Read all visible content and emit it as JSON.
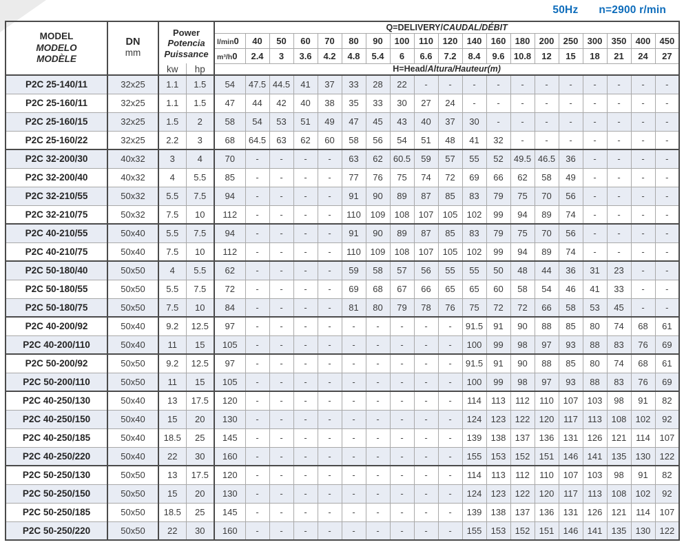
{
  "page": {
    "frequency": "50Hz",
    "speed": "n=2900 r/min",
    "accent_blue": "#0d6cbb",
    "stripe_color": "#e8ecf4"
  },
  "table": {
    "header": {
      "model_lines": [
        "MODEL",
        "MODELO",
        "MODÈLE"
      ],
      "dn_label": "DN",
      "dn_unit": "mm",
      "power_lines": [
        "Power",
        "Potencia",
        "Puissance"
      ],
      "kw_label": "kw",
      "hp_label": "hp",
      "q_title_main": "Q=DELIVERY/",
      "q_title_italic": "CAUDAL/DÉBIT",
      "lmin_label": "l/min",
      "m3h_label": "m³/h",
      "lmin_values": [
        "0",
        "40",
        "50",
        "60",
        "70",
        "80",
        "90",
        "100",
        "110",
        "120",
        "140",
        "160",
        "180",
        "200",
        "250",
        "300",
        "350",
        "400",
        "450"
      ],
      "m3h_values": [
        "0",
        "2.4",
        "3",
        "3.6",
        "4.2",
        "4.8",
        "5.4",
        "6",
        "6.6",
        "7.2",
        "8.4",
        "9.6",
        "10.8",
        "12",
        "15",
        "18",
        "21",
        "24",
        "27"
      ],
      "h_title_main": "H=Head/",
      "h_title_italic": "Altura/Hauteur(m)"
    },
    "rows": [
      {
        "model": "P2C 25-140/11",
        "dn": "32x25",
        "kw": "1.1",
        "hp": "1.5",
        "head": [
          "54",
          "47.5",
          "44.5",
          "41",
          "37",
          "33",
          "28",
          "22",
          "-",
          "-",
          "-",
          "-",
          "-",
          "-",
          "-",
          "-",
          "-",
          "-",
          "-"
        ],
        "groupEnd": false
      },
      {
        "model": "P2C 25-160/11",
        "dn": "32x25",
        "kw": "1.1",
        "hp": "1.5",
        "head": [
          "47",
          "44",
          "42",
          "40",
          "38",
          "35",
          "33",
          "30",
          "27",
          "24",
          "-",
          "-",
          "-",
          "-",
          "-",
          "-",
          "-",
          "-",
          "-"
        ],
        "groupEnd": false
      },
      {
        "model": "P2C 25-160/15",
        "dn": "32x25",
        "kw": "1.5",
        "hp": "2",
        "head": [
          "58",
          "54",
          "53",
          "51",
          "49",
          "47",
          "45",
          "43",
          "40",
          "37",
          "30",
          "-",
          "-",
          "-",
          "-",
          "-",
          "-",
          "-",
          "-"
        ],
        "groupEnd": false
      },
      {
        "model": "P2C 25-160/22",
        "dn": "32x25",
        "kw": "2.2",
        "hp": "3",
        "head": [
          "68",
          "64.5",
          "63",
          "62",
          "60",
          "58",
          "56",
          "54",
          "51",
          "48",
          "41",
          "32",
          "-",
          "-",
          "-",
          "-",
          "-",
          "-",
          "-"
        ],
        "groupEnd": true
      },
      {
        "model": "P2C 32-200/30",
        "dn": "40x32",
        "kw": "3",
        "hp": "4",
        "head": [
          "70",
          "-",
          "-",
          "-",
          "-",
          "63",
          "62",
          "60.5",
          "59",
          "57",
          "55",
          "52",
          "49.5",
          "46.5",
          "36",
          "-",
          "-",
          "-",
          "-"
        ],
        "groupEnd": false
      },
      {
        "model": "P2C 32-200/40",
        "dn": "40x32",
        "kw": "4",
        "hp": "5.5",
        "head": [
          "85",
          "-",
          "-",
          "-",
          "-",
          "77",
          "76",
          "75",
          "74",
          "72",
          "69",
          "66",
          "62",
          "58",
          "49",
          "-",
          "-",
          "-",
          "-"
        ],
        "groupEnd": false
      },
      {
        "model": "P2C 32-210/55",
        "dn": "50x32",
        "kw": "5.5",
        "hp": "7.5",
        "head": [
          "94",
          "-",
          "-",
          "-",
          "-",
          "91",
          "90",
          "89",
          "87",
          "85",
          "83",
          "79",
          "75",
          "70",
          "56",
          "-",
          "-",
          "-",
          "-"
        ],
        "groupEnd": false
      },
      {
        "model": "P2C 32-210/75",
        "dn": "50x32",
        "kw": "7.5",
        "hp": "10",
        "head": [
          "112",
          "-",
          "-",
          "-",
          "-",
          "110",
          "109",
          "108",
          "107",
          "105",
          "102",
          "99",
          "94",
          "89",
          "74",
          "-",
          "-",
          "-",
          "-"
        ],
        "groupEnd": true
      },
      {
        "model": "P2C 40-210/55",
        "dn": "50x40",
        "kw": "5.5",
        "hp": "7.5",
        "head": [
          "94",
          "-",
          "-",
          "-",
          "-",
          "91",
          "90",
          "89",
          "87",
          "85",
          "83",
          "79",
          "75",
          "70",
          "56",
          "-",
          "-",
          "-",
          "-"
        ],
        "groupEnd": false
      },
      {
        "model": "P2C 40-210/75",
        "dn": "50x40",
        "kw": "7.5",
        "hp": "10",
        "head": [
          "112",
          "-",
          "-",
          "-",
          "-",
          "110",
          "109",
          "108",
          "107",
          "105",
          "102",
          "99",
          "94",
          "89",
          "74",
          "-",
          "-",
          "-",
          "-"
        ],
        "groupEnd": true
      },
      {
        "model": "P2C 50-180/40",
        "dn": "50x50",
        "kw": "4",
        "hp": "5.5",
        "head": [
          "62",
          "-",
          "-",
          "-",
          "-",
          "59",
          "58",
          "57",
          "56",
          "55",
          "55",
          "50",
          "48",
          "44",
          "36",
          "31",
          "23",
          "-",
          "-"
        ],
        "groupEnd": false
      },
      {
        "model": "P2C 50-180/55",
        "dn": "50x50",
        "kw": "5.5",
        "hp": "7.5",
        "head": [
          "72",
          "-",
          "-",
          "-",
          "-",
          "69",
          "68",
          "67",
          "66",
          "65",
          "65",
          "60",
          "58",
          "54",
          "46",
          "41",
          "33",
          "-",
          "-"
        ],
        "groupEnd": false
      },
      {
        "model": "P2C 50-180/75",
        "dn": "50x50",
        "kw": "7.5",
        "hp": "10",
        "head": [
          "84",
          "-",
          "-",
          "-",
          "-",
          "81",
          "80",
          "79",
          "78",
          "76",
          "75",
          "72",
          "72",
          "66",
          "58",
          "53",
          "45",
          "-",
          "-"
        ],
        "groupEnd": true
      },
      {
        "model": "P2C 40-200/92",
        "dn": "50x40",
        "kw": "9.2",
        "hp": "12.5",
        "head": [
          "97",
          "-",
          "-",
          "-",
          "-",
          "-",
          "-",
          "-",
          "-",
          "-",
          "91.5",
          "91",
          "90",
          "88",
          "85",
          "80",
          "74",
          "68",
          "61"
        ],
        "groupEnd": false
      },
      {
        "model": "P2C 40-200/110",
        "dn": "50x40",
        "kw": "11",
        "hp": "15",
        "head": [
          "105",
          "-",
          "-",
          "-",
          "-",
          "-",
          "-",
          "-",
          "-",
          "-",
          "100",
          "99",
          "98",
          "97",
          "93",
          "88",
          "83",
          "76",
          "69"
        ],
        "groupEnd": true
      },
      {
        "model": "P2C 50-200/92",
        "dn": "50x50",
        "kw": "9.2",
        "hp": "12.5",
        "head": [
          "97",
          "-",
          "-",
          "-",
          "-",
          "-",
          "-",
          "-",
          "-",
          "-",
          "91.5",
          "91",
          "90",
          "88",
          "85",
          "80",
          "74",
          "68",
          "61"
        ],
        "groupEnd": false
      },
      {
        "model": "P2C 50-200/110",
        "dn": "50x50",
        "kw": "11",
        "hp": "15",
        "head": [
          "105",
          "-",
          "-",
          "-",
          "-",
          "-",
          "-",
          "-",
          "-",
          "-",
          "100",
          "99",
          "98",
          "97",
          "93",
          "88",
          "83",
          "76",
          "69"
        ],
        "groupEnd": true
      },
      {
        "model": "P2C 40-250/130",
        "dn": "50x40",
        "kw": "13",
        "hp": "17.5",
        "head": [
          "120",
          "-",
          "-",
          "-",
          "-",
          "-",
          "-",
          "-",
          "-",
          "-",
          "114",
          "113",
          "112",
          "110",
          "107",
          "103",
          "98",
          "91",
          "82"
        ],
        "groupEnd": false
      },
      {
        "model": "P2C 40-250/150",
        "dn": "50x40",
        "kw": "15",
        "hp": "20",
        "head": [
          "130",
          "-",
          "-",
          "-",
          "-",
          "-",
          "-",
          "-",
          "-",
          "-",
          "124",
          "123",
          "122",
          "120",
          "117",
          "113",
          "108",
          "102",
          "92"
        ],
        "groupEnd": false
      },
      {
        "model": "P2C 40-250/185",
        "dn": "50x40",
        "kw": "18.5",
        "hp": "25",
        "head": [
          "145",
          "-",
          "-",
          "-",
          "-",
          "-",
          "-",
          "-",
          "-",
          "-",
          "139",
          "138",
          "137",
          "136",
          "131",
          "126",
          "121",
          "114",
          "107"
        ],
        "groupEnd": false
      },
      {
        "model": "P2C 40-250/220",
        "dn": "50x40",
        "kw": "22",
        "hp": "30",
        "head": [
          "160",
          "-",
          "-",
          "-",
          "-",
          "-",
          "-",
          "-",
          "-",
          "-",
          "155",
          "153",
          "152",
          "151",
          "146",
          "141",
          "135",
          "130",
          "122"
        ],
        "groupEnd": true
      },
      {
        "model": "P2C 50-250/130",
        "dn": "50x50",
        "kw": "13",
        "hp": "17.5",
        "head": [
          "120",
          "-",
          "-",
          "-",
          "-",
          "-",
          "-",
          "-",
          "-",
          "-",
          "114",
          "113",
          "112",
          "110",
          "107",
          "103",
          "98",
          "91",
          "82"
        ],
        "groupEnd": false
      },
      {
        "model": "P2C 50-250/150",
        "dn": "50x50",
        "kw": "15",
        "hp": "20",
        "head": [
          "130",
          "-",
          "-",
          "-",
          "-",
          "-",
          "-",
          "-",
          "-",
          "-",
          "124",
          "123",
          "122",
          "120",
          "117",
          "113",
          "108",
          "102",
          "92"
        ],
        "groupEnd": false
      },
      {
        "model": "P2C 50-250/185",
        "dn": "50x50",
        "kw": "18.5",
        "hp": "25",
        "head": [
          "145",
          "-",
          "-",
          "-",
          "-",
          "-",
          "-",
          "-",
          "-",
          "-",
          "139",
          "138",
          "137",
          "136",
          "131",
          "126",
          "121",
          "114",
          "107"
        ],
        "groupEnd": false
      },
      {
        "model": "P2C 50-250/220",
        "dn": "50x50",
        "kw": "22",
        "hp": "30",
        "head": [
          "160",
          "-",
          "-",
          "-",
          "-",
          "-",
          "-",
          "-",
          "-",
          "-",
          "155",
          "153",
          "152",
          "151",
          "146",
          "141",
          "135",
          "130",
          "122"
        ],
        "groupEnd": false
      }
    ]
  }
}
